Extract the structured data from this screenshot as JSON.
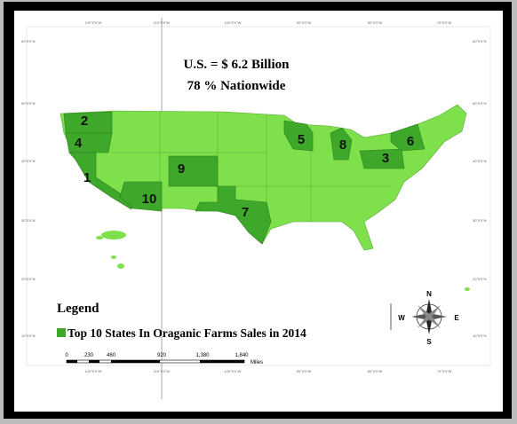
{
  "header": {
    "total": "U.S. = $ 6.2 Billion",
    "share": "78 % Nationwide"
  },
  "legend": {
    "title": "Legend",
    "item": "Top 10 States In Oraganic Farms Sales in 2014"
  },
  "ranks": [
    "1",
    "2",
    "3",
    "4",
    "5",
    "6",
    "7",
    "8",
    "9",
    "10"
  ],
  "compass": {
    "n": "N",
    "e": "E",
    "s": "S",
    "w": "W"
  },
  "scale": {
    "labels": [
      "0",
      "230",
      "460",
      "920",
      "1,380",
      "1,840"
    ],
    "unit": "Miles"
  },
  "graticule": {
    "longitudes": [
      "120°0'0\"W",
      "110°0'0\"W",
      "100°0'0\"W",
      "90°0'0\"W",
      "80°0'0\"W",
      "70°0'0\"W"
    ],
    "latitudes": [
      "60°0'0\"N",
      "50°0'0\"N",
      "40°0'0\"N",
      "30°0'0\"N",
      "20°0'0\"N",
      "10°0'0\"N"
    ]
  }
}
